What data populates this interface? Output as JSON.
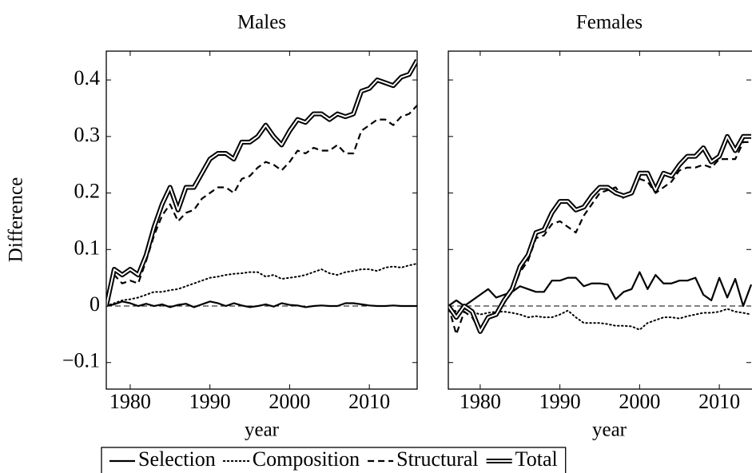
{
  "chart_data": [
    {
      "type": "line",
      "title": "Males",
      "xlabel": "year",
      "ylabel": "Difference",
      "x": [
        1977,
        1978,
        1979,
        1980,
        1981,
        1982,
        1983,
        1984,
        1985,
        1986,
        1987,
        1988,
        1989,
        1990,
        1991,
        1992,
        1993,
        1994,
        1995,
        1996,
        1997,
        1998,
        1999,
        2000,
        2001,
        2002,
        2003,
        2004,
        2005,
        2006,
        2007,
        2008,
        2009,
        2010,
        2011,
        2012,
        2013,
        2014,
        2015,
        2016
      ],
      "series": [
        {
          "name": "Selection",
          "color": "#000000",
          "style": "solid",
          "values": [
            0,
            0.003,
            0.008,
            0.005,
            0,
            0.004,
            0,
            0.003,
            -0.002,
            0.002,
            0.004,
            -0.002,
            0.003,
            0.008,
            0.005,
            0,
            0.005,
            0.001,
            -0.002,
            0,
            0.003,
            -0.001,
            0.005,
            0.002,
            0.001,
            -0.002,
            0,
            0.001,
            0,
            0,
            0.005,
            0.005,
            0.003,
            0.001,
            0,
            0,
            0.001,
            0,
            0,
            0
          ]
        },
        {
          "name": "Composition",
          "color": "#000000",
          "style": "dotted",
          "values": [
            0,
            0.005,
            0.01,
            0.012,
            0.015,
            0.02,
            0.025,
            0.025,
            0.028,
            0.03,
            0.035,
            0.04,
            0.045,
            0.05,
            0.052,
            0.055,
            0.057,
            0.058,
            0.06,
            0.06,
            0.052,
            0.055,
            0.048,
            0.05,
            0.052,
            0.055,
            0.06,
            0.065,
            0.058,
            0.055,
            0.06,
            0.062,
            0.065,
            0.065,
            0.062,
            0.068,
            0.07,
            0.068,
            0.072,
            0.075
          ]
        },
        {
          "name": "Structural",
          "color": "#000000",
          "style": "dashed",
          "values": [
            0,
            0.055,
            0.04,
            0.045,
            0.04,
            0.08,
            0.125,
            0.16,
            0.18,
            0.15,
            0.165,
            0.17,
            0.19,
            0.2,
            0.21,
            0.21,
            0.2,
            0.225,
            0.23,
            0.245,
            0.255,
            0.25,
            0.24,
            0.255,
            0.275,
            0.27,
            0.28,
            0.275,
            0.275,
            0.285,
            0.27,
            0.27,
            0.31,
            0.32,
            0.33,
            0.33,
            0.32,
            0.335,
            0.34,
            0.355
          ]
        },
        {
          "name": "Total",
          "color": "#000000",
          "style": "double",
          "values": [
            0,
            0.065,
            0.055,
            0.065,
            0.055,
            0.09,
            0.14,
            0.18,
            0.21,
            0.17,
            0.21,
            0.21,
            0.235,
            0.26,
            0.27,
            0.27,
            0.26,
            0.29,
            0.29,
            0.3,
            0.32,
            0.3,
            0.285,
            0.31,
            0.33,
            0.325,
            0.34,
            0.34,
            0.33,
            0.34,
            0.335,
            0.34,
            0.38,
            0.385,
            0.4,
            0.395,
            0.39,
            0.405,
            0.41,
            0.435
          ]
        }
      ],
      "xlim": [
        1977,
        2016
      ],
      "xticks": [
        1980,
        1990,
        2000,
        2010
      ],
      "ylim": [
        -0.147,
        0.451
      ],
      "yticks": [
        {
          "value": -0.1,
          "label": "−0.1"
        },
        0,
        0.1,
        0.2,
        0.3,
        0.4
      ],
      "yticklabels": true,
      "reference_line": 0
    },
    {
      "type": "line",
      "title": "Females",
      "xlabel": "year",
      "x": [
        1976,
        1977,
        1978,
        1979,
        1980,
        1981,
        1982,
        1983,
        1984,
        1985,
        1986,
        1987,
        1988,
        1989,
        1990,
        1991,
        1992,
        1993,
        1994,
        1995,
        1996,
        1997,
        1998,
        1999,
        2000,
        2001,
        2002,
        2003,
        2004,
        2005,
        2006,
        2007,
        2008,
        2009,
        2010,
        2011,
        2012,
        2013,
        2014
      ],
      "series": [
        {
          "color": "#000000",
          "style": "solid",
          "values": [
            0,
            0.01,
            0,
            0.01,
            0.02,
            0.03,
            0.015,
            0.02,
            0.025,
            0.035,
            0.03,
            0.025,
            0.025,
            0.045,
            0.045,
            0.05,
            0.05,
            0.035,
            0.04,
            0.04,
            0.038,
            0.012,
            0.025,
            0.03,
            0.06,
            0.03,
            0.055,
            0.04,
            0.04,
            0.045,
            0.045,
            0.05,
            0.02,
            0.01,
            0.05,
            0.015,
            0.048,
            0.0,
            0.038
          ]
        },
        {
          "color": "#000000",
          "style": "dotted",
          "values": [
            0,
            -0.01,
            -0.005,
            -0.01,
            -0.015,
            -0.012,
            -0.01,
            -0.01,
            -0.012,
            -0.015,
            -0.02,
            -0.018,
            -0.02,
            -0.02,
            -0.015,
            -0.008,
            -0.02,
            -0.03,
            -0.03,
            -0.03,
            -0.032,
            -0.035,
            -0.035,
            -0.036,
            -0.042,
            -0.03,
            -0.025,
            -0.02,
            -0.02,
            -0.022,
            -0.018,
            -0.015,
            -0.012,
            -0.012,
            -0.01,
            -0.005,
            -0.01,
            -0.012,
            -0.015
          ]
        },
        {
          "color": "#000000",
          "style": "dashed",
          "values": [
            0,
            -0.05,
            -0.01,
            -0.02,
            -0.045,
            -0.02,
            -0.015,
            0.005,
            0.025,
            0.06,
            0.08,
            0.12,
            0.125,
            0.145,
            0.15,
            0.14,
            0.13,
            0.16,
            0.18,
            0.2,
            0.205,
            0.21,
            0.19,
            0.205,
            0.225,
            0.22,
            0.2,
            0.21,
            0.22,
            0.24,
            0.245,
            0.245,
            0.25,
            0.245,
            0.26,
            0.26,
            0.26,
            0.29,
            0.29
          ]
        },
        {
          "color": "#000000",
          "style": "double",
          "values": [
            0,
            -0.02,
            0,
            -0.01,
            -0.045,
            -0.02,
            -0.015,
            0.01,
            0.03,
            0.07,
            0.09,
            0.13,
            0.135,
            0.165,
            0.185,
            0.185,
            0.17,
            0.175,
            0.195,
            0.21,
            0.21,
            0.2,
            0.195,
            0.2,
            0.235,
            0.235,
            0.205,
            0.235,
            0.23,
            0.25,
            0.265,
            0.265,
            0.28,
            0.255,
            0.265,
            0.3,
            0.275,
            0.3,
            0.3
          ]
        }
      ],
      "xlim": [
        1976,
        2014
      ],
      "xticks": [
        1980,
        1990,
        2000,
        2010
      ],
      "ylim": [
        -0.147,
        0.451
      ],
      "yticks": [
        -0.1,
        0,
        0.1,
        0.2,
        0.3,
        0.4
      ],
      "yticklabels": false,
      "reference_line": 0
    }
  ]
}
